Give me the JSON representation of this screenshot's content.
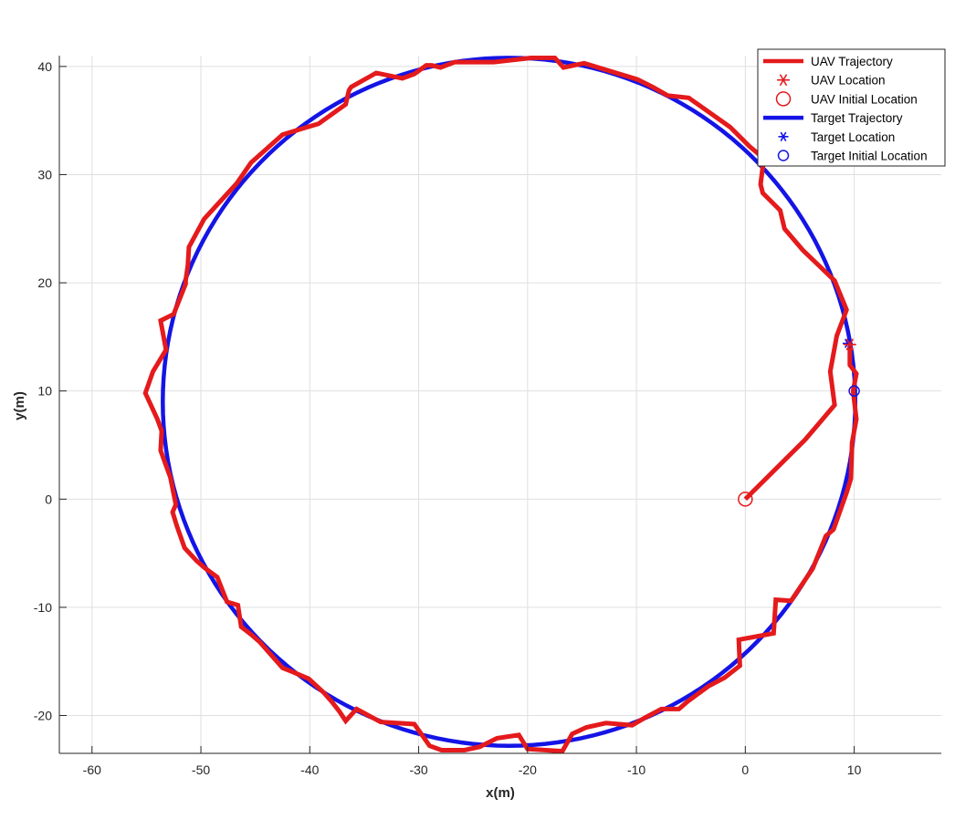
{
  "chart_data": {
    "type": "line",
    "title": "",
    "xlabel": "x(m)",
    "ylabel": "y(m)",
    "xlim": [
      -63,
      18
    ],
    "ylim": [
      -23.5,
      41
    ],
    "xticks": [
      -60,
      -50,
      -40,
      -30,
      -20,
      -10,
      0,
      10
    ],
    "yticks": [
      -20,
      -10,
      0,
      10,
      20,
      30,
      40
    ],
    "grid": true,
    "legend_position": "top-right",
    "colors": {
      "uav": "#e41a1c",
      "target": "#1414e6"
    },
    "legend": [
      {
        "label": "UAV Trajectory",
        "marker": "line",
        "color": "#e41a1c"
      },
      {
        "label": "UAV Location",
        "marker": "asterisk",
        "color": "#e41a1c"
      },
      {
        "label": "UAV Initial Location",
        "marker": "circle",
        "color": "#e41a1c"
      },
      {
        "label": "Target Trajectory",
        "marker": "line",
        "color": "#1414e6"
      },
      {
        "label": "Target Location",
        "marker": "asterisk",
        "color": "#1414e6"
      },
      {
        "label": "Target Initial Location",
        "marker": "circle",
        "color": "#1414e6"
      }
    ],
    "series": [
      {
        "name": "Target Trajectory",
        "kind": "circle",
        "center": [
          -21.7,
          9
        ],
        "radius": 31.8,
        "color": "#1414e6"
      },
      {
        "name": "UAV Trajectory",
        "color": "#e41a1c",
        "points": [
          [
            0,
            0
          ],
          [
            5.5,
            5.5
          ],
          [
            8.2,
            8.7
          ],
          [
            7.8,
            11.8
          ],
          [
            8.4,
            15.1
          ],
          [
            9.3,
            17.5
          ],
          [
            8.2,
            20.2
          ],
          [
            5.3,
            23
          ],
          [
            3.6,
            25
          ],
          [
            3.2,
            26.7
          ],
          [
            1.6,
            28.3
          ],
          [
            1.4,
            29.1
          ],
          [
            1.7,
            31.5
          ],
          [
            0.4,
            32.6
          ],
          [
            -1.4,
            34.4
          ],
          [
            -5.2,
            37.1
          ],
          [
            -7.1,
            37.3
          ],
          [
            -8.5,
            38.1
          ],
          [
            -9.9,
            38.8
          ],
          [
            -14.8,
            40.3
          ],
          [
            -16.7,
            39.9
          ],
          [
            -17.5,
            40.8
          ],
          [
            -19.6,
            40.8
          ],
          [
            -23.1,
            40.4
          ],
          [
            -26.7,
            40.4
          ],
          [
            -28,
            39.9
          ],
          [
            -28.8,
            40.1
          ],
          [
            -29.3,
            40.1
          ],
          [
            -30.4,
            39.3
          ],
          [
            -31.5,
            38.9
          ],
          [
            -33.9,
            39.4
          ],
          [
            -36.2,
            38.1
          ],
          [
            -36.4,
            37.8
          ],
          [
            -36.7,
            36.5
          ],
          [
            -39.2,
            34.7
          ],
          [
            -40.2,
            34.4
          ],
          [
            -42.5,
            33.7
          ],
          [
            -45.4,
            31.1
          ],
          [
            -46.7,
            29.2
          ],
          [
            -49.7,
            25.9
          ],
          [
            -51.1,
            23.3
          ],
          [
            -51.2,
            21.6
          ],
          [
            -51.4,
            20.2
          ],
          [
            -51.4,
            19.9
          ],
          [
            -52.5,
            17.1
          ],
          [
            -53.7,
            16.5
          ],
          [
            -53.2,
            13.8
          ],
          [
            -54.4,
            11.8
          ],
          [
            -55.1,
            9.8
          ],
          [
            -54,
            7.4
          ],
          [
            -53.6,
            6.3
          ],
          [
            -53.7,
            4.5
          ],
          [
            -52.8,
            2
          ],
          [
            -52.3,
            -0.5
          ],
          [
            -52.6,
            -1.2
          ],
          [
            -52.2,
            -2.5
          ],
          [
            -51.5,
            -4.5
          ],
          [
            -50.4,
            -5.7
          ],
          [
            -49.6,
            -6.4
          ],
          [
            -48.5,
            -7.2
          ],
          [
            -47.6,
            -9.5
          ],
          [
            -46.6,
            -9.8
          ],
          [
            -46.3,
            -11.8
          ],
          [
            -45.4,
            -12.5
          ],
          [
            -44.6,
            -13.2
          ],
          [
            -42.5,
            -15.6
          ],
          [
            -41.5,
            -16
          ],
          [
            -40.1,
            -16.6
          ],
          [
            -38.7,
            -17.9
          ],
          [
            -38,
            -18.7
          ],
          [
            -37.3,
            -19.6
          ],
          [
            -36.7,
            -20.5
          ],
          [
            -35.7,
            -19.4
          ],
          [
            -33.5,
            -20.6
          ],
          [
            -30.4,
            -20.8
          ],
          [
            -29,
            -22.8
          ],
          [
            -27.9,
            -23.2
          ],
          [
            -25.8,
            -23.2
          ],
          [
            -24.4,
            -22.9
          ],
          [
            -22.8,
            -22.1
          ],
          [
            -20.8,
            -21.8
          ],
          [
            -20,
            -23.1
          ],
          [
            -16.8,
            -23.3
          ],
          [
            -15.9,
            -21.7
          ],
          [
            -14.6,
            -21.1
          ],
          [
            -12.8,
            -20.7
          ],
          [
            -10.4,
            -20.9
          ],
          [
            -9.2,
            -20.2
          ],
          [
            -7.7,
            -19.4
          ],
          [
            -6.1,
            -19.4
          ],
          [
            -5.3,
            -18.7
          ],
          [
            -3.4,
            -17.3
          ],
          [
            -1.9,
            -16.5
          ],
          [
            -0.5,
            -15.4
          ],
          [
            -0.6,
            -13
          ],
          [
            2.6,
            -12.4
          ],
          [
            2.8,
            -9.3
          ],
          [
            4.2,
            -9.4
          ],
          [
            6.2,
            -6.4
          ],
          [
            7.4,
            -3.4
          ],
          [
            8.1,
            -2.8
          ],
          [
            9.3,
            0.6
          ],
          [
            9.7,
            1.9
          ],
          [
            9.8,
            5.2
          ],
          [
            10.2,
            7.4
          ],
          [
            9.9,
            10
          ],
          [
            10.2,
            11.6
          ],
          [
            9.6,
            12.4
          ],
          [
            9.6,
            14.3
          ]
        ]
      }
    ],
    "markers": {
      "uav_initial": [
        0,
        0
      ],
      "uav_location": [
        9.6,
        14.3
      ],
      "target_initial": [
        10,
        10
      ],
      "target_location": [
        9.4,
        14.4
      ]
    }
  }
}
